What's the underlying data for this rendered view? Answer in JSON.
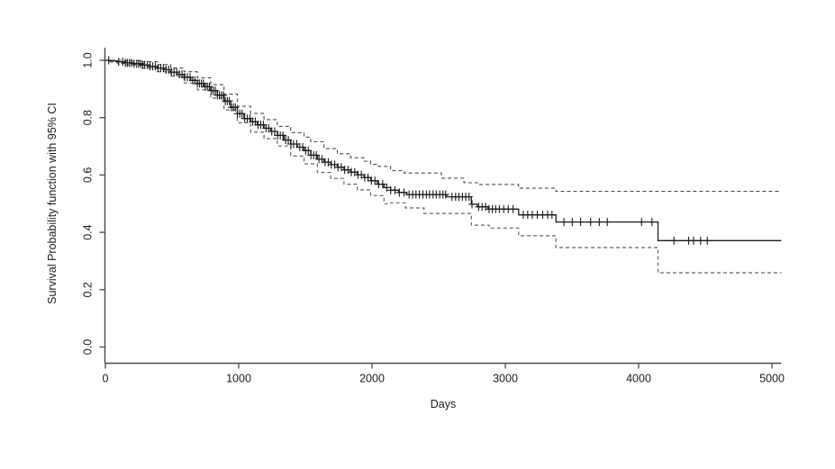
{
  "figure": {
    "background_color": "#ffffff",
    "axis_color": "#4a4a4a",
    "text_color": "#1c1c1c"
  },
  "chart_data": {
    "type": "line",
    "subtype": "kaplan-meier-step",
    "title": "",
    "xlabel": "Days",
    "ylabel": "Survival Probability function with 95% CI",
    "xlim": [
      0,
      5070
    ],
    "ylim": [
      0.0,
      1.0
    ],
    "x_ticks": [
      0,
      1000,
      2000,
      3000,
      4000,
      5000
    ],
    "x_tick_labels": [
      "0",
      "1000",
      "2000",
      "3000",
      "4000",
      "5000"
    ],
    "y_ticks": [
      0.0,
      0.2,
      0.4,
      0.6,
      0.8,
      1.0
    ],
    "y_tick_labels": [
      "0.0",
      "0.2",
      "0.4",
      "0.6",
      "0.8",
      "1.0"
    ],
    "grid": false,
    "legend": null,
    "series": [
      {
        "name": "survival",
        "label": "Survival probability",
        "step": true,
        "style": {
          "color": "#1b1b1b",
          "width": 1.3,
          "dash": "none"
        },
        "points": [
          [
            0,
            1.0
          ],
          [
            30,
            0.998
          ],
          [
            90,
            0.995
          ],
          [
            150,
            0.991
          ],
          [
            210,
            0.988
          ],
          [
            270,
            0.984
          ],
          [
            330,
            0.979
          ],
          [
            390,
            0.973
          ],
          [
            440,
            0.967
          ],
          [
            490,
            0.959
          ],
          [
            540,
            0.951
          ],
          [
            590,
            0.941
          ],
          [
            640,
            0.93
          ],
          [
            690,
            0.919
          ],
          [
            740,
            0.908
          ],
          [
            790,
            0.894
          ],
          [
            840,
            0.878
          ],
          [
            890,
            0.858
          ],
          [
            940,
            0.836
          ],
          [
            990,
            0.814
          ],
          [
            1040,
            0.797
          ],
          [
            1090,
            0.786
          ],
          [
            1140,
            0.775
          ],
          [
            1190,
            0.763
          ],
          [
            1240,
            0.752
          ],
          [
            1290,
            0.738
          ],
          [
            1340,
            0.722
          ],
          [
            1390,
            0.708
          ],
          [
            1440,
            0.697
          ],
          [
            1490,
            0.685
          ],
          [
            1540,
            0.669
          ],
          [
            1590,
            0.655
          ],
          [
            1640,
            0.645
          ],
          [
            1690,
            0.636
          ],
          [
            1740,
            0.627
          ],
          [
            1790,
            0.618
          ],
          [
            1840,
            0.61
          ],
          [
            1890,
            0.601
          ],
          [
            1940,
            0.591
          ],
          [
            1990,
            0.58
          ],
          [
            2040,
            0.568
          ],
          [
            2090,
            0.556
          ],
          [
            2140,
            0.547
          ],
          [
            2200,
            0.539
          ],
          [
            2260,
            0.532
          ],
          [
            2560,
            0.524
          ],
          [
            2745,
            0.498
          ],
          [
            2790,
            0.489
          ],
          [
            2870,
            0.481
          ],
          [
            3100,
            0.461
          ],
          [
            3380,
            0.436
          ],
          [
            4145,
            0.371
          ],
          [
            5070,
            0.371
          ]
        ]
      },
      {
        "name": "upper-95ci",
        "label": "Upper 95% CI",
        "step": true,
        "style": {
          "color": "#4d4d4d",
          "width": 1.1,
          "dash": "4 3"
        },
        "points": [
          [
            0,
            1.0
          ],
          [
            150,
            0.998
          ],
          [
            270,
            0.995
          ],
          [
            390,
            0.985
          ],
          [
            490,
            0.973
          ],
          [
            590,
            0.96
          ],
          [
            690,
            0.939
          ],
          [
            790,
            0.915
          ],
          [
            890,
            0.882
          ],
          [
            990,
            0.84
          ],
          [
            1090,
            0.815
          ],
          [
            1190,
            0.793
          ],
          [
            1290,
            0.77
          ],
          [
            1390,
            0.748
          ],
          [
            1490,
            0.732
          ],
          [
            1540,
            0.716
          ],
          [
            1640,
            0.692
          ],
          [
            1740,
            0.674
          ],
          [
            1840,
            0.66
          ],
          [
            1940,
            0.648
          ],
          [
            1990,
            0.637
          ],
          [
            2040,
            0.63
          ],
          [
            2140,
            0.615
          ],
          [
            2240,
            0.607
          ],
          [
            2520,
            0.589
          ],
          [
            2690,
            0.573
          ],
          [
            2800,
            0.567
          ],
          [
            3100,
            0.554
          ],
          [
            3380,
            0.543
          ],
          [
            5070,
            0.543
          ]
        ]
      },
      {
        "name": "lower-95ci",
        "label": "Lower 95% CI",
        "step": true,
        "style": {
          "color": "#666666",
          "width": 1.2,
          "dash": "4 3"
        },
        "points": [
          [
            0,
            1.0
          ],
          [
            30,
            0.994
          ],
          [
            90,
            0.989
          ],
          [
            150,
            0.984
          ],
          [
            270,
            0.973
          ],
          [
            390,
            0.96
          ],
          [
            490,
            0.944
          ],
          [
            590,
            0.921
          ],
          [
            690,
            0.897
          ],
          [
            790,
            0.868
          ],
          [
            890,
            0.827
          ],
          [
            990,
            0.782
          ],
          [
            1090,
            0.749
          ],
          [
            1190,
            0.727
          ],
          [
            1290,
            0.701
          ],
          [
            1390,
            0.666
          ],
          [
            1490,
            0.639
          ],
          [
            1590,
            0.609
          ],
          [
            1690,
            0.588
          ],
          [
            1790,
            0.568
          ],
          [
            1890,
            0.548
          ],
          [
            1990,
            0.528
          ],
          [
            2090,
            0.5
          ],
          [
            2140,
            0.503
          ],
          [
            2250,
            0.485
          ],
          [
            2390,
            0.466
          ],
          [
            2745,
            0.425
          ],
          [
            2880,
            0.415
          ],
          [
            3100,
            0.388
          ],
          [
            3380,
            0.347
          ],
          [
            4145,
            0.259
          ],
          [
            5070,
            0.259
          ]
        ]
      }
    ],
    "censor_marks": {
      "symbol": "+",
      "style": {
        "color": "#1b1b1b",
        "width": 1.1,
        "half_size": 4
      },
      "days": [
        25,
        100,
        130,
        150,
        165,
        180,
        195,
        215,
        235,
        250,
        265,
        280,
        295,
        315,
        335,
        355,
        375,
        395,
        415,
        435,
        455,
        475,
        495,
        515,
        535,
        555,
        575,
        595,
        615,
        635,
        655,
        672,
        690,
        705,
        720,
        735,
        750,
        765,
        780,
        795,
        810,
        825,
        840,
        855,
        870,
        885,
        900,
        915,
        930,
        945,
        960,
        975,
        990,
        1008,
        1025,
        1045,
        1065,
        1085,
        1105,
        1125,
        1145,
        1165,
        1185,
        1205,
        1225,
        1248,
        1270,
        1292,
        1312,
        1332,
        1352,
        1372,
        1392,
        1412,
        1435,
        1458,
        1480,
        1502,
        1522,
        1542,
        1562,
        1582,
        1602,
        1625,
        1648,
        1672,
        1695,
        1720,
        1745,
        1770,
        1795,
        1820,
        1845,
        1870,
        1895,
        1920,
        1945,
        1970,
        1995,
        2022,
        2050,
        2080,
        2110,
        2140,
        2172,
        2205,
        2240,
        2278,
        2305,
        2330,
        2355,
        2382,
        2408,
        2432,
        2458,
        2482,
        2508,
        2532,
        2552,
        2600,
        2627,
        2652,
        2678,
        2703,
        2728,
        2750,
        2800,
        2826,
        2852,
        2878,
        2903,
        2928,
        2955,
        2988,
        3022,
        3058,
        3135,
        3168,
        3202,
        3240,
        3280,
        3318,
        3350,
        3440,
        3502,
        3565,
        3640,
        3705,
        3765,
        4022,
        4100,
        4265,
        4375,
        4412,
        4465,
        4515
      ]
    }
  }
}
